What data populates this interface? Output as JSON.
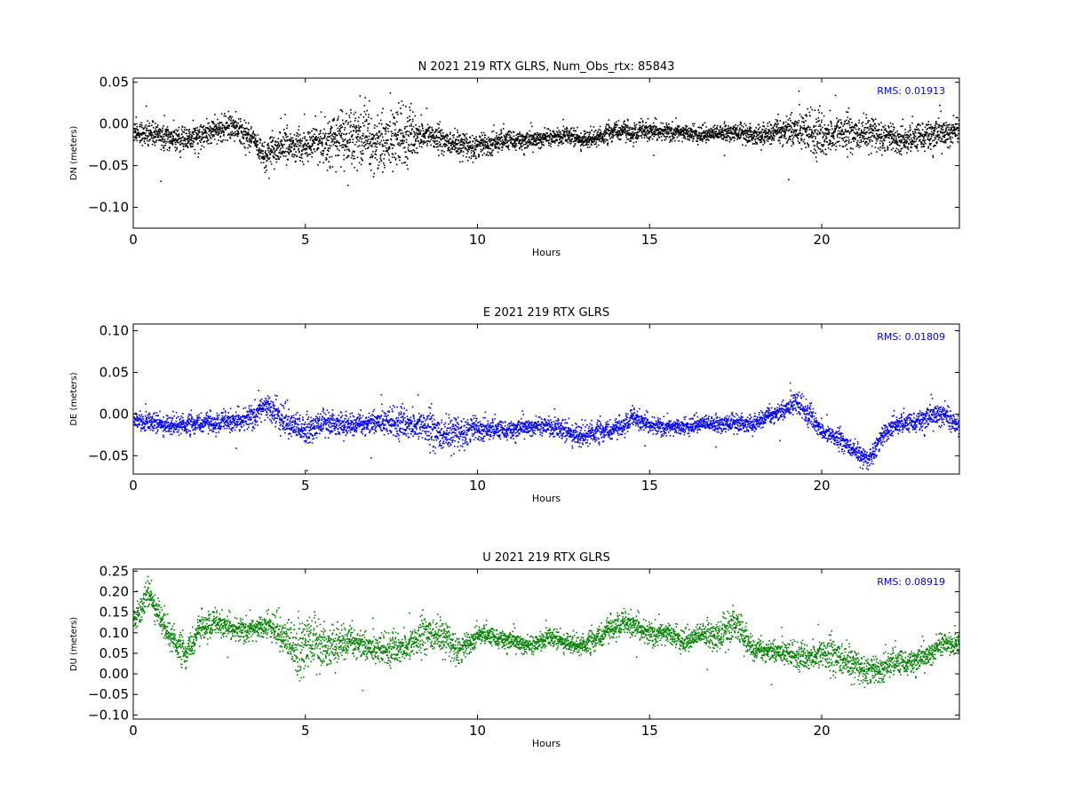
{
  "chart_data": [
    {
      "type": "scatter",
      "title": "N 2021 219 RTX  GLRS, Num_Obs_rtx: 85843",
      "xlabel": "Hours",
      "ylabel": "DN (meters)",
      "xlim": [
        0,
        24
      ],
      "ylim": [
        -0.125,
        0.055
      ],
      "xticks": [
        0,
        5,
        10,
        15,
        20
      ],
      "xtick_labels": [
        "0",
        "5",
        "10",
        "15",
        "20"
      ],
      "yticks": [
        -0.1,
        -0.05,
        0.0,
        0.05
      ],
      "ytick_labels": [
        "−0.10",
        "−0.05",
        "0.00",
        "0.05"
      ],
      "annotation": "RMS:  0.01913",
      "color": "#000000",
      "legend": "none",
      "grid": false,
      "series": [
        {
          "x": [
            0,
            0.5,
            1,
            1.5,
            2,
            2.5,
            2.8,
            3,
            3.5,
            3.8,
            4,
            4.5,
            5,
            5.5,
            6,
            6.5,
            7,
            7.5,
            8,
            8.5,
            9,
            9.5,
            10,
            10.5,
            11,
            11.5,
            12,
            12.5,
            13,
            13.5,
            14,
            14.5,
            15,
            15.5,
            16,
            16.5,
            17,
            17.5,
            18,
            18.5,
            19,
            19.5,
            20,
            20.5,
            21,
            21.5,
            22,
            22.5,
            23,
            23.5,
            24
          ],
          "y": [
            -0.008,
            -0.012,
            -0.015,
            -0.018,
            -0.012,
            -0.006,
            -0.003,
            -0.005,
            -0.02,
            -0.04,
            -0.03,
            -0.025,
            -0.025,
            -0.02,
            -0.015,
            -0.02,
            -0.02,
            -0.018,
            -0.015,
            -0.012,
            -0.02,
            -0.025,
            -0.025,
            -0.02,
            -0.018,
            -0.02,
            -0.015,
            -0.013,
            -0.018,
            -0.015,
            -0.007,
            -0.01,
            -0.008,
            -0.008,
            -0.01,
            -0.012,
            -0.01,
            -0.01,
            -0.012,
            -0.01,
            -0.005,
            -0.008,
            -0.015,
            -0.01,
            -0.012,
            -0.01,
            -0.015,
            -0.018,
            -0.012,
            -0.012,
            -0.005
          ],
          "spread": [
            0.012,
            0.012,
            0.012,
            0.012,
            0.013,
            0.013,
            0.014,
            0.013,
            0.013,
            0.016,
            0.018,
            0.018,
            0.016,
            0.02,
            0.03,
            0.035,
            0.035,
            0.035,
            0.025,
            0.014,
            0.013,
            0.013,
            0.013,
            0.012,
            0.01,
            0.01,
            0.009,
            0.009,
            0.009,
            0.009,
            0.01,
            0.01,
            0.01,
            0.009,
            0.009,
            0.009,
            0.009,
            0.009,
            0.01,
            0.012,
            0.018,
            0.02,
            0.022,
            0.02,
            0.018,
            0.016,
            0.015,
            0.014,
            0.016,
            0.016,
            0.013
          ]
        }
      ]
    },
    {
      "type": "scatter",
      "title": "E 2021 219 RTX  GLRS",
      "xlabel": "Hours",
      "ylabel": "DE (meters)",
      "xlim": [
        0,
        24
      ],
      "ylim": [
        -0.072,
        0.108
      ],
      "xticks": [
        0,
        5,
        10,
        15,
        20
      ],
      "xtick_labels": [
        "0",
        "5",
        "10",
        "15",
        "20"
      ],
      "yticks": [
        -0.05,
        0.0,
        0.05,
        0.1
      ],
      "ytick_labels": [
        "−0.05",
        "0.00",
        "0.05",
        "0.10"
      ],
      "annotation": "RMS:  0.01809",
      "color": "#0000ff",
      "legend": "none",
      "grid": false,
      "series": [
        {
          "x": [
            0,
            0.5,
            1,
            1.5,
            2,
            2.5,
            3,
            3.5,
            3.8,
            4,
            4.5,
            5,
            5.5,
            6,
            6.5,
            7,
            7.5,
            8,
            8.5,
            8.7,
            9,
            9.5,
            10,
            10.5,
            11,
            11.5,
            12,
            12.5,
            13,
            13.5,
            14,
            14.5,
            15,
            15.5,
            16,
            16.5,
            17,
            17.5,
            18,
            18.5,
            19,
            19.2,
            19.5,
            20,
            20.5,
            21,
            21.3,
            21.6,
            22,
            22.5,
            23,
            23.5,
            24
          ],
          "y": [
            -0.005,
            -0.01,
            -0.012,
            -0.012,
            -0.01,
            -0.01,
            -0.008,
            0.0,
            0.01,
            0.005,
            -0.01,
            -0.02,
            -0.01,
            -0.01,
            -0.012,
            -0.008,
            -0.01,
            -0.012,
            -0.015,
            -0.02,
            -0.025,
            -0.02,
            -0.015,
            -0.018,
            -0.018,
            -0.015,
            -0.012,
            -0.02,
            -0.025,
            -0.02,
            -0.018,
            -0.005,
            -0.012,
            -0.015,
            -0.015,
            -0.01,
            -0.012,
            -0.01,
            -0.01,
            0.0,
            0.008,
            0.015,
            0.005,
            -0.02,
            -0.03,
            -0.045,
            -0.055,
            -0.035,
            -0.012,
            -0.01,
            -0.005,
            0.002,
            -0.015
          ],
          "spread": [
            0.01,
            0.01,
            0.01,
            0.01,
            0.01,
            0.01,
            0.011,
            0.013,
            0.014,
            0.016,
            0.017,
            0.016,
            0.012,
            0.012,
            0.012,
            0.013,
            0.014,
            0.015,
            0.018,
            0.02,
            0.018,
            0.016,
            0.013,
            0.01,
            0.01,
            0.009,
            0.01,
            0.011,
            0.012,
            0.011,
            0.01,
            0.01,
            0.009,
            0.009,
            0.009,
            0.009,
            0.009,
            0.009,
            0.009,
            0.01,
            0.011,
            0.012,
            0.011,
            0.01,
            0.01,
            0.01,
            0.009,
            0.011,
            0.01,
            0.01,
            0.012,
            0.013,
            0.01
          ]
        }
      ]
    },
    {
      "type": "scatter",
      "title": "U 2021 219 RTX  GLRS",
      "xlabel": "Hours",
      "ylabel": "DU (meters)",
      "xlim": [
        0,
        24
      ],
      "ylim": [
        -0.11,
        0.255
      ],
      "xticks": [
        0,
        5,
        10,
        15,
        20
      ],
      "xtick_labels": [
        "0",
        "5",
        "10",
        "15",
        "20"
      ],
      "yticks": [
        -0.1,
        -0.05,
        0.0,
        0.05,
        0.1,
        0.15,
        0.2,
        0.25
      ],
      "ytick_labels": [
        "−0.10",
        "−0.05",
        "0.00",
        "0.05",
        "0.10",
        "0.15",
        "0.20",
        "0.25"
      ],
      "annotation": "RMS:  0.08919",
      "color": "#008000",
      "legend": "none",
      "grid": false,
      "series": [
        {
          "x": [
            0,
            0.2,
            0.4,
            0.6,
            1,
            1.5,
            2,
            2.5,
            3,
            3.5,
            4,
            4.5,
            4.8,
            5,
            5.5,
            6,
            6.5,
            7,
            7.5,
            8,
            8.5,
            9,
            9.5,
            10,
            10.5,
            11,
            11.5,
            12,
            12.5,
            13,
            13.5,
            14,
            14.5,
            15,
            15.5,
            16,
            16.5,
            17,
            17.5,
            18,
            18.5,
            19,
            19.5,
            20,
            20.5,
            21,
            21.5,
            22,
            22.5,
            23,
            23.5,
            24
          ],
          "y": [
            0.14,
            0.15,
            0.2,
            0.17,
            0.1,
            0.05,
            0.12,
            0.12,
            0.11,
            0.11,
            0.12,
            0.08,
            0.05,
            0.08,
            0.07,
            0.08,
            0.08,
            0.06,
            0.06,
            0.07,
            0.1,
            0.09,
            0.06,
            0.1,
            0.09,
            0.08,
            0.07,
            0.09,
            0.08,
            0.07,
            0.09,
            0.12,
            0.12,
            0.1,
            0.1,
            0.08,
            0.1,
            0.09,
            0.13,
            0.06,
            0.06,
            0.05,
            0.04,
            0.05,
            0.04,
            0.02,
            0.01,
            0.03,
            0.03,
            0.04,
            0.08,
            0.07
          ],
          "spread": [
            0.025,
            0.03,
            0.03,
            0.03,
            0.03,
            0.03,
            0.03,
            0.025,
            0.025,
            0.025,
            0.03,
            0.05,
            0.07,
            0.06,
            0.045,
            0.04,
            0.035,
            0.03,
            0.03,
            0.035,
            0.04,
            0.035,
            0.03,
            0.02,
            0.02,
            0.02,
            0.02,
            0.02,
            0.02,
            0.02,
            0.025,
            0.025,
            0.025,
            0.025,
            0.025,
            0.025,
            0.025,
            0.035,
            0.035,
            0.025,
            0.025,
            0.025,
            0.025,
            0.035,
            0.04,
            0.03,
            0.03,
            0.03,
            0.025,
            0.025,
            0.025,
            0.02
          ]
        }
      ]
    }
  ]
}
